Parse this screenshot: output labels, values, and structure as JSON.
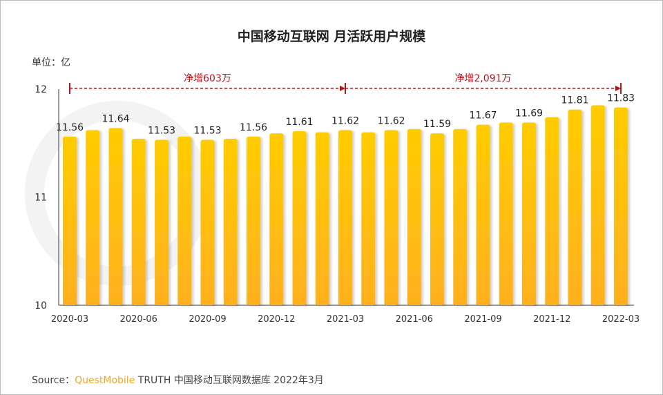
{
  "chart_data": {
    "type": "bar",
    "title": "中国移动互联网 月活跃用户规模",
    "unit_label": "单位：亿",
    "ylim": [
      10,
      12
    ],
    "yticks": [
      10,
      11,
      12
    ],
    "grid": false,
    "categories": [
      "2020-03",
      "2020-04",
      "2020-05",
      "2020-06",
      "2020-07",
      "2020-08",
      "2020-09",
      "2020-10",
      "2020-11",
      "2020-12",
      "2021-01",
      "2021-02",
      "2021-03",
      "2021-04",
      "2021-05",
      "2021-06",
      "2021-07",
      "2021-08",
      "2021-09",
      "2021-10",
      "2021-11",
      "2021-12",
      "2022-01",
      "2022-02",
      "2022-03"
    ],
    "xtick_labels": [
      "2020-03",
      "",
      "",
      "2020-06",
      "",
      "",
      "2020-09",
      "",
      "",
      "2020-12",
      "",
      "",
      "2021-03",
      "",
      "",
      "2021-06",
      "",
      "",
      "2021-09",
      "",
      "",
      "2021-12",
      "",
      "",
      "2022-03"
    ],
    "values": [
      11.56,
      11.62,
      11.64,
      11.54,
      11.53,
      11.56,
      11.53,
      11.54,
      11.56,
      11.59,
      11.61,
      11.6,
      11.62,
      11.6,
      11.62,
      11.63,
      11.59,
      11.63,
      11.67,
      11.69,
      11.69,
      11.74,
      11.81,
      11.85,
      11.83
    ],
    "data_labels": [
      "11.56",
      "",
      "11.64",
      "",
      "11.53",
      "",
      "11.53",
      "",
      "11.56",
      "",
      "11.61",
      "",
      "11.62",
      "",
      "11.62",
      "",
      "11.59",
      "",
      "11.67",
      "",
      "11.69",
      "",
      "11.81",
      "",
      "11.83"
    ],
    "annotations": [
      {
        "text": "净增603万",
        "from": "2020-03",
        "to": "2021-03"
      },
      {
        "text": "净增2,091万",
        "from": "2021-03",
        "to": "2022-03"
      }
    ],
    "colors": {
      "bar_top": "#FFCC00",
      "bar_bottom": "#FFB020",
      "annotation": "#C0101A"
    }
  },
  "source": {
    "prefix": "Source：",
    "brand": "QuestMobile",
    "text": " TRUTH 中国移动互联网数据库 2022年3月"
  }
}
